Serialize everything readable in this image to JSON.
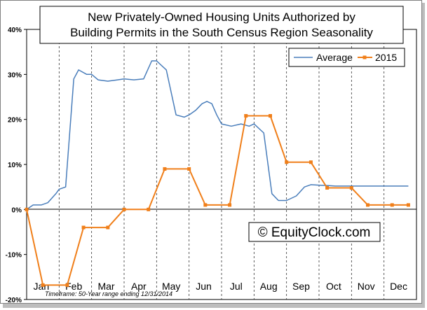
{
  "chart_data": {
    "type": "line",
    "title_lines": [
      "New Privately-Owned Housing Units Authorized by",
      "Building Permits in the South Census Region Seasonality"
    ],
    "y_tick_labels": [
      "40%",
      "30%",
      "20%",
      "10%",
      "0%",
      "-10%",
      "-20%"
    ],
    "ylim": [
      -20,
      40
    ],
    "categories": [
      "Jan",
      "Feb",
      "Mar",
      "Apr",
      "May",
      "Jun",
      "Jul",
      "Aug",
      "Sep",
      "Oct",
      "Nov",
      "Dec"
    ],
    "grid": "vertical dashed at month boundaries",
    "legend_position": "top-right",
    "series": [
      {
        "name": "Average",
        "color": "#4a7ebb",
        "marker": "none",
        "x": [
          0,
          0.2,
          0.45,
          0.65,
          0.9,
          1.0,
          1.2,
          1.45,
          1.6,
          1.85,
          2.0,
          2.2,
          2.5,
          2.8,
          3.0,
          3.3,
          3.6,
          3.85,
          4.0,
          4.3,
          4.6,
          4.85,
          5.0,
          5.2,
          5.4,
          5.55,
          5.7,
          5.85,
          6.0,
          6.3,
          6.6,
          6.85,
          7.0,
          7.3,
          7.55,
          7.75,
          8.0,
          8.3,
          8.55,
          8.75,
          9.0,
          9.3,
          9.5,
          9.7,
          9.9,
          10.0,
          10.3,
          10.5,
          10.8,
          11.0,
          11.2,
          11.4,
          11.6,
          11.75
        ],
        "values": [
          0,
          1.0,
          1.0,
          1.5,
          3.5,
          4.5,
          5.0,
          29,
          31,
          30,
          30,
          28.8,
          28.5,
          28.8,
          29,
          28.8,
          29,
          33,
          33,
          31,
          21,
          20.5,
          21,
          22,
          23.5,
          24,
          23.5,
          21,
          19,
          18.5,
          19,
          18.5,
          19,
          17,
          3.5,
          2.0,
          2.0,
          3.0,
          5.0,
          5.5,
          5.4,
          5.3,
          5.2,
          5.2,
          5.2,
          5.2,
          5.2,
          5.2,
          5.2,
          5.2,
          5.2,
          5.2,
          5.2,
          5.2
        ]
      },
      {
        "name": "2015",
        "color": "#f07f1a",
        "marker": "square",
        "x": [
          0,
          0.5,
          1.25,
          1.75,
          2.5,
          3.0,
          3.75,
          4.25,
          5.0,
          5.5,
          6.25,
          6.75,
          7.5,
          8.0,
          8.75,
          9.25,
          10.0,
          10.5,
          11.25,
          11.75
        ],
        "values": [
          0,
          -16.8,
          -16.8,
          -4,
          -4,
          0,
          0,
          9,
          9,
          1.0,
          1.0,
          20.8,
          20.8,
          10.5,
          10.5,
          4.8,
          4.8,
          1.0,
          1.0,
          1.0
        ]
      }
    ],
    "watermark": "© EquityClock.com",
    "footnote": "Timeframe: 50-Year range ending 12/31/2014"
  }
}
